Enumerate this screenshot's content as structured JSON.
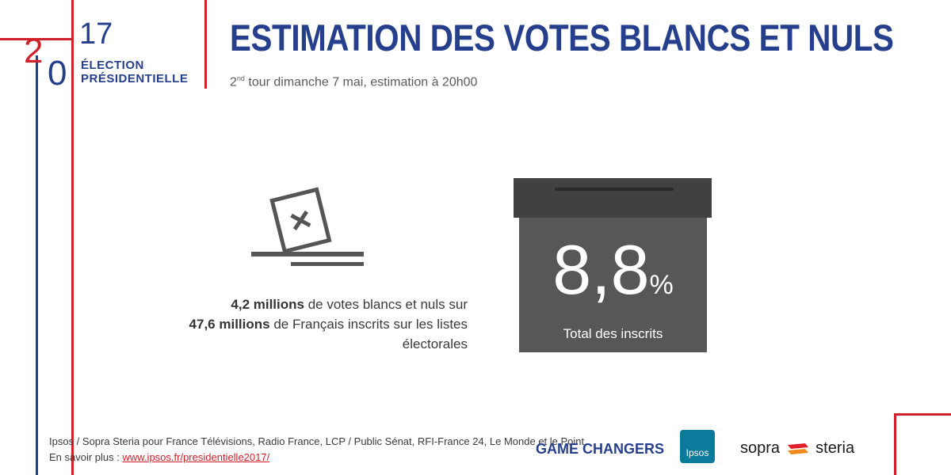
{
  "logo": {
    "digit_2": "2",
    "digit_0": "0",
    "digit_17": "17",
    "text": "ÉLECTION\nPRÉSIDENTIELLE"
  },
  "header": {
    "title": "ESTIMATION DES VOTES BLANCS ET NULS",
    "subtitle_prefix": "2",
    "subtitle_sup": "nd",
    "subtitle_rest": " tour dimanche 7 mai, estimation à 20h00"
  },
  "stats": {
    "line1_bold": "4,2 millions",
    "line1_rest": " de votes blancs et nuls sur",
    "line2_bold": "47,6 millions",
    "line2_rest": " de Français inscrits sur les listes électorales"
  },
  "ballot_box": {
    "value": "8,8",
    "unit": "%",
    "caption": "Total des inscrits"
  },
  "footer": {
    "source": "Ipsos / Sopra Steria pour France Télévisions, Radio France, LCP / Public Sénat, RFI-France 24, Le Monde et le Point",
    "more_label": "En savoir plus : ",
    "link_text": "www.ipsos.fr/presidentielle2017/"
  },
  "partners": {
    "game_changers": "GAME CHANGERS",
    "ipsos": "Ipsos",
    "sopra": "sopra",
    "steria": "steria"
  },
  "colors": {
    "blue": "#263f8c",
    "red": "#d0202b",
    "box_dark": "#414141",
    "box_body": "#575757"
  },
  "icons": [
    "ballot-paper-icon",
    "ballot-box-icon",
    "sopra-steria-mark-icon"
  ]
}
